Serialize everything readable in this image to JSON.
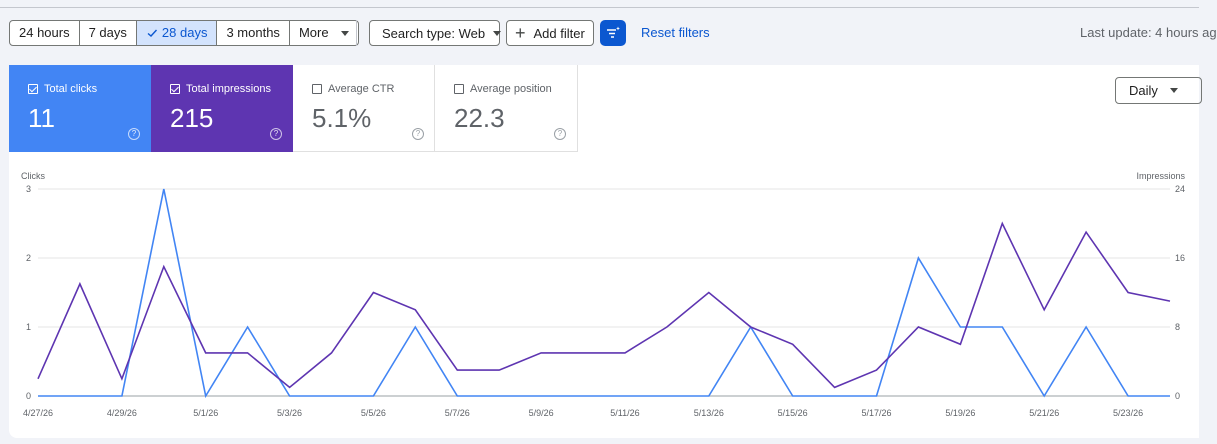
{
  "toolbar": {
    "date_ranges": [
      "24 hours",
      "7 days",
      "28 days",
      "3 months"
    ],
    "selected_range": "28 days",
    "more_label": "More",
    "search_type_label": "Search type: Web",
    "add_filter_label": "Add filter",
    "reset_filters_label": "Reset filters",
    "last_update": "Last update: 4 hours ag"
  },
  "metrics": {
    "clicks": {
      "label": "Total clicks",
      "value": "11",
      "checked": true,
      "color": "#4285f4"
    },
    "impressions": {
      "label": "Total impressions",
      "value": "215",
      "checked": true,
      "color": "#5e35b1"
    },
    "ctr": {
      "label": "Average CTR",
      "value": "5.1%",
      "checked": false
    },
    "position": {
      "label": "Average position",
      "value": "22.3",
      "checked": false
    }
  },
  "granularity": "Daily",
  "chart_data": {
    "type": "line",
    "left_axis_label": "Clicks",
    "right_axis_label": "Impressions",
    "left_ticks": [
      "0",
      "1",
      "2",
      "3"
    ],
    "right_ticks": [
      "0",
      "8",
      "16",
      "24"
    ],
    "left_ylim": [
      0,
      3
    ],
    "right_ylim": [
      0,
      24
    ],
    "x_tick_labels": [
      "4/27/26",
      "4/29/26",
      "5/1/26",
      "5/3/26",
      "5/5/26",
      "5/7/26",
      "5/9/26",
      "5/11/26",
      "5/13/26",
      "5/15/26",
      "5/17/26",
      "5/19/26",
      "5/21/26",
      "5/23/26"
    ],
    "x": [
      "4/27/26",
      "4/28/26",
      "4/29/26",
      "4/30/26",
      "5/1/26",
      "5/2/26",
      "5/3/26",
      "5/4/26",
      "5/5/26",
      "5/6/26",
      "5/7/26",
      "5/8/26",
      "5/9/26",
      "5/10/26",
      "5/11/26",
      "5/12/26",
      "5/13/26",
      "5/14/26",
      "5/15/26",
      "5/16/26",
      "5/17/26",
      "5/18/26",
      "5/19/26",
      "5/20/26",
      "5/21/26",
      "5/22/26",
      "5/23/26",
      "5/24/26"
    ],
    "series": [
      {
        "name": "Clicks",
        "axis": "left",
        "color": "#4285f4",
        "values": [
          0,
          0,
          0,
          3,
          0,
          1,
          0,
          0,
          0,
          1,
          0,
          0,
          0,
          0,
          0,
          0,
          0,
          1,
          0,
          0,
          0,
          2,
          1,
          1,
          0,
          1,
          0,
          0
        ]
      },
      {
        "name": "Impressions",
        "axis": "right",
        "color": "#5e35b1",
        "values": [
          2,
          13,
          2,
          15,
          5,
          5,
          1,
          5,
          12,
          10,
          3,
          3,
          5,
          5,
          5,
          8,
          12,
          8,
          6,
          1,
          3,
          8,
          6,
          20,
          10,
          19,
          12,
          11
        ]
      }
    ],
    "grid": true
  }
}
